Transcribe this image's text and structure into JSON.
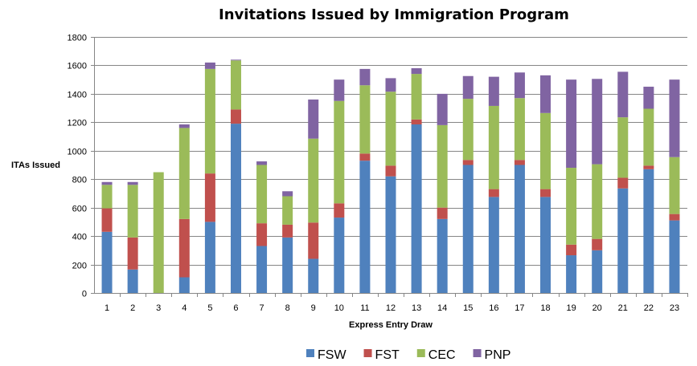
{
  "chart_data": {
    "type": "bar",
    "stacked": true,
    "title": "Invitations Issued by Immigration Program",
    "xlabel": "Express Entry Draw",
    "ylabel": "ITAs Issued",
    "ylim": [
      0,
      1800
    ],
    "yticks": [
      0,
      200,
      400,
      600,
      800,
      1000,
      1200,
      1400,
      1600,
      1800
    ],
    "grid": true,
    "legend": "bottom",
    "categories": [
      "1",
      "2",
      "3",
      "4",
      "5",
      "6",
      "7",
      "8",
      "9",
      "10",
      "11",
      "12",
      "13",
      "14",
      "15",
      "16",
      "17",
      "18",
      "19",
      "20",
      "21",
      "22",
      "23"
    ],
    "series": [
      {
        "name": "FSW",
        "color": "#4F81BD",
        "values": [
          430,
          165,
          0,
          110,
          500,
          1190,
          330,
          390,
          240,
          530,
          930,
          820,
          1185,
          520,
          900,
          675,
          900,
          675,
          265,
          300,
          735,
          870,
          510
        ]
      },
      {
        "name": "FST",
        "color": "#C0504D",
        "values": [
          165,
          225,
          0,
          410,
          340,
          100,
          160,
          90,
          255,
          100,
          50,
          75,
          35,
          80,
          35,
          55,
          35,
          55,
          75,
          80,
          75,
          25,
          45
        ]
      },
      {
        "name": "CEC",
        "color": "#9BBB59",
        "values": [
          165,
          370,
          849,
          640,
          735,
          345,
          410,
          200,
          590,
          720,
          480,
          520,
          320,
          580,
          430,
          585,
          435,
          535,
          540,
          525,
          425,
          400,
          400
        ]
      },
      {
        "name": "PNP",
        "color": "#8064A2",
        "values": [
          20,
          20,
          0,
          25,
          45,
          5,
          25,
          35,
          275,
          150,
          115,
          95,
          40,
          220,
          160,
          205,
          180,
          265,
          620,
          600,
          320,
          155,
          545
        ]
      }
    ]
  }
}
